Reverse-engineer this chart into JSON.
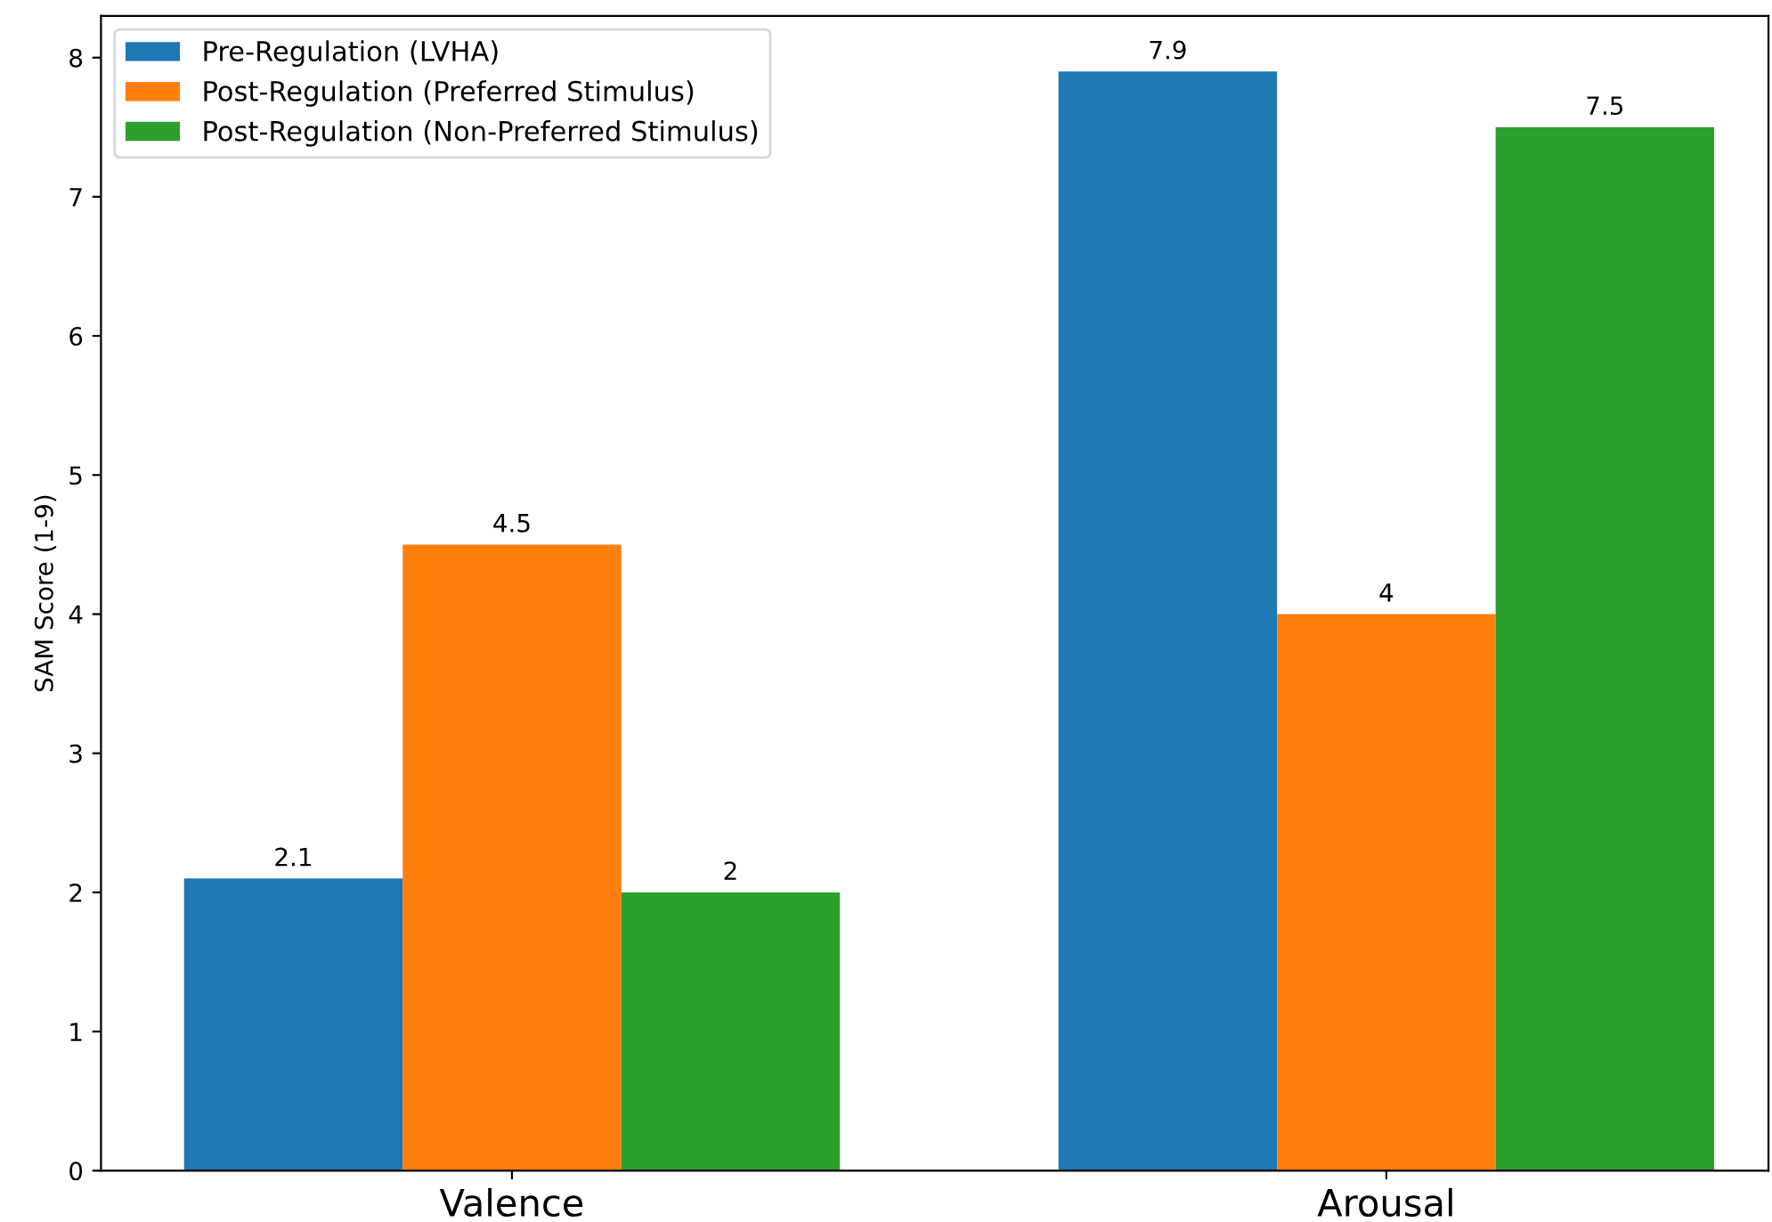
{
  "chart_data": {
    "type": "bar",
    "ylabel": "SAM Score (1-9)",
    "categories": [
      "Valence",
      "Arousal"
    ],
    "series": [
      {
        "name": "Pre-Regulation (LVHA)",
        "color": "#1f77b4",
        "values": [
          2.1,
          7.9
        ]
      },
      {
        "name": "Post-Regulation (Preferred Stimulus)",
        "color": "#ff7f0e",
        "values": [
          4.5,
          4
        ]
      },
      {
        "name": "Post-Regulation (Non-Preferred Stimulus)",
        "color": "#2ca02c",
        "values": [
          2,
          7.5
        ]
      }
    ],
    "ylim": [
      0,
      8.3
    ],
    "yticks": [
      0,
      1,
      2,
      3,
      4,
      5,
      6,
      7,
      8
    ],
    "data_labels": true,
    "legend": "top left",
    "grid": false
  }
}
